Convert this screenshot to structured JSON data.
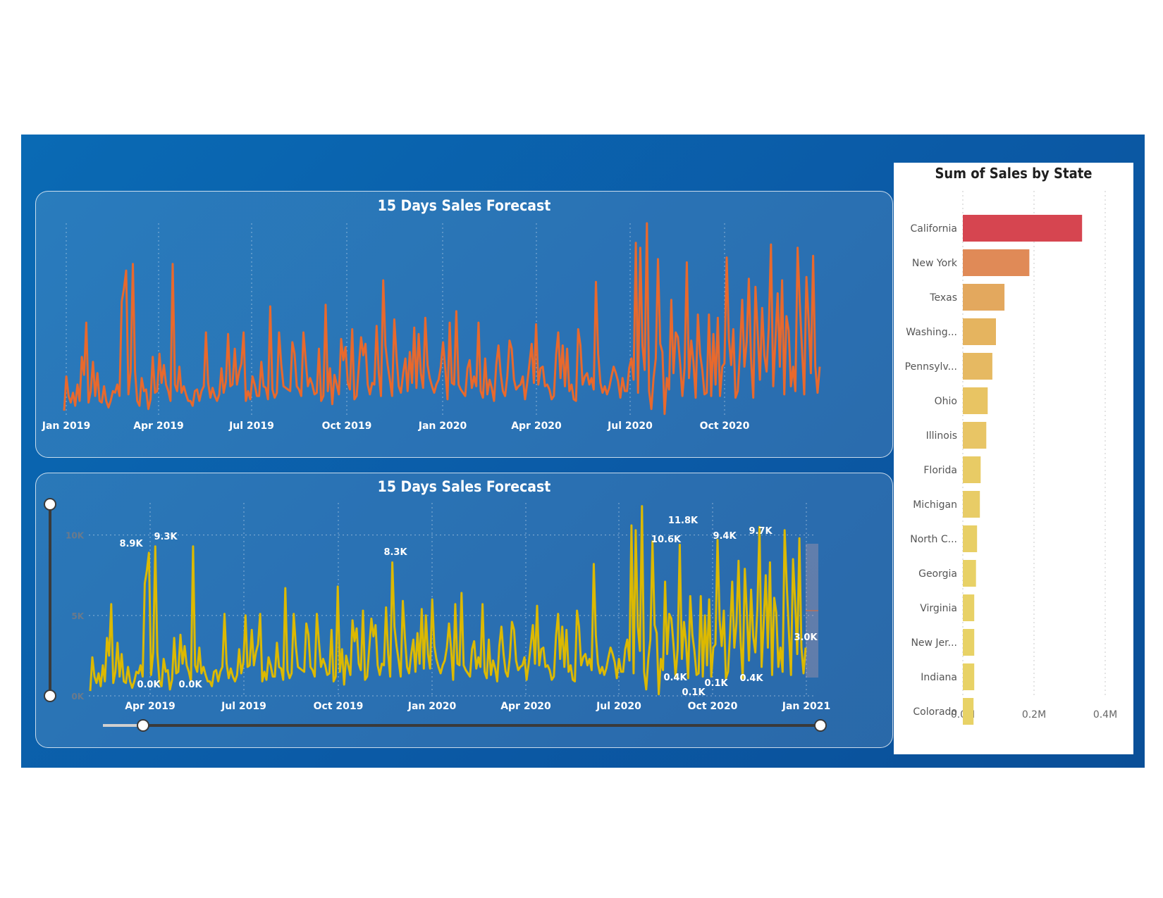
{
  "colors": {
    "line1": "#e8692d",
    "line2": "#dcb900",
    "bars": [
      "#d64550",
      "#e08a57",
      "#e3a85e",
      "#e5b45f",
      "#e6b962",
      "#e8c463",
      "#e8c565",
      "#e8cb65",
      "#e8cc66",
      "#e8cf66",
      "#e8d166",
      "#e8d166",
      "#e8d266",
      "#e8d266",
      "#e8d266"
    ]
  },
  "charts": {
    "top": {
      "title": "15 Days Sales Forecast"
    },
    "bottom": {
      "title": "15 Days Sales Forecast"
    },
    "bars": {
      "title": "Sum of Sales by State"
    }
  },
  "chart_data": [
    {
      "type": "line",
      "title": "15 Days Sales Forecast",
      "x_ticks": [
        "Jan 2019",
        "Apr 2019",
        "Jul 2019",
        "Oct 2019",
        "Jan 2020",
        "Apr 2020",
        "Jul 2020",
        "Oct 2020"
      ],
      "series": [
        {
          "values": [
            300,
            2400,
            1200,
            800,
            1400,
            600,
            1900,
            900,
            3600,
            2500,
            5700,
            800,
            1500,
            3300,
            1200,
            2600,
            900,
            800,
            1800,
            900,
            500,
            900,
            1500,
            1400,
            1900,
            1200,
            7000,
            7800,
            8900,
            1300,
            2700,
            9300,
            2700,
            900,
            600,
            2300,
            1500,
            1600,
            400,
            1000,
            3600,
            1400,
            1500,
            3800,
            2000,
            3100,
            1900,
            1500,
            900,
            9300,
            1900,
            1500,
            3000,
            1400,
            1800,
            1300,
            900,
            900,
            600,
            1500,
            1600,
            900,
            1500,
            1800,
            5100,
            2000,
            1100,
            1700,
            1200,
            900,
            1300,
            2900,
            1400,
            2100,
            5000,
            1800,
            1900,
            4100,
            1900,
            2700,
            3200,
            5100,
            900,
            1500,
            1000,
            2400,
            1900,
            1200,
            1200,
            3300,
            1800,
            1700,
            1000,
            6700,
            1600,
            1100,
            1400,
            5100,
            3100,
            1800,
            1700,
            1600,
            1500,
            4500,
            3800,
            1800,
            1600,
            1200,
            5100,
            3400,
            1800,
            2300,
            1900,
            1300,
            1400,
            4100,
            900,
            1200,
            6800,
            1500,
            2900,
            700,
            2500,
            1900,
            1300,
            4700,
            3400,
            4200,
            2000,
            1600,
            5300,
            1000,
            1200,
            3000,
            4800,
            3700,
            4400,
            1900,
            1300,
            2000,
            1900,
            5500,
            2600,
            1200,
            8300,
            4300,
            3100,
            2200,
            1200,
            5900,
            3600,
            1800,
            1400,
            2600,
            3500,
            1500,
            3900,
            2000,
            5400,
            1700,
            5000,
            2600,
            1700,
            6000,
            3100,
            2300,
            1800,
            1400,
            1900,
            2200,
            3000,
            4500,
            2900,
            1000,
            5700,
            2000,
            1900,
            6400,
            1900,
            1600,
            1400,
            1200,
            2900,
            3400,
            1700,
            2400,
            1800,
            5700,
            1500,
            1100,
            3500,
            1300,
            2200,
            1700,
            900,
            3100,
            4300,
            2600,
            1500,
            1200,
            2400,
            4600,
            4100,
            2200,
            1600,
            1800,
            1900,
            2400,
            1000,
            2000,
            3200,
            4400,
            2000,
            5600,
            1900,
            2900,
            3000,
            1800,
            1900,
            1600,
            1000,
            1200,
            3700,
            5100,
            2300,
            4300,
            1800,
            4100,
            1500,
            1900,
            1000,
            900,
            5300,
            4300,
            1900,
            2400,
            2600,
            1900,
            2300,
            1600,
            8200,
            3800,
            2000,
            1400,
            1800,
            1300,
            1700,
            2400,
            3000,
            2600,
            2100,
            1100,
            2300,
            1500,
            1500,
            2900,
            3500,
            2200,
            10600,
            1400,
            10300,
            4300,
            2800,
            11800,
            1500,
            400,
            2300,
            3500,
            9600,
            4400,
            3900,
            100,
            2300,
            1600,
            7100,
            2600,
            5100,
            4800,
            3200,
            1200,
            2900,
            9400,
            2300,
            4600,
            3300,
            1100,
            6200,
            3800,
            2800,
            1300,
            1400,
            6200,
            1200,
            5000,
            1900,
            6000,
            1200,
            3000,
            3200,
            9700,
            4700,
            3100,
            5300,
            1100,
            1500,
            3900,
            7100,
            3000,
            4500,
            8400,
            3500,
            1100,
            7900,
            5000,
            2200,
            6600,
            3700,
            2700,
            5400,
            10500,
            1800,
            4600,
            7500,
            3000,
            8300,
            1300,
            6100,
            5200,
            1800,
            3000,
            1500,
            10300,
            6900,
            4000,
            1300,
            8500,
            5800,
            2600,
            9800,
            3000,
            1400,
            3000
          ]
        }
      ]
    },
    {
      "type": "line",
      "title": "15 Days Sales Forecast",
      "x_ticks": [
        "Apr 2019",
        "Jul 2019",
        "Oct 2019",
        "Jan 2020",
        "Apr 2020",
        "Jul 2020",
        "Oct 2020",
        "Jan 2021"
      ],
      "y_ticks": [
        "0K",
        "5K",
        "10K"
      ],
      "ylim": [
        0,
        12000
      ],
      "data_labels": [
        {
          "text": "8.9K"
        },
        {
          "text": "9.3K"
        },
        {
          "text": "0.0K"
        },
        {
          "text": "0.0K"
        },
        {
          "text": "8.3K"
        },
        {
          "text": "11.8K"
        },
        {
          "text": "10.6K"
        },
        {
          "text": "9.4K"
        },
        {
          "text": "9.7K"
        },
        {
          "text": "0.4K"
        },
        {
          "text": "0.1K"
        },
        {
          "text": "0.1K"
        },
        {
          "text": "0.4K"
        },
        {
          "text": "3.0K"
        }
      ]
    },
    {
      "type": "bar",
      "orientation": "horizontal",
      "title": "Sum of Sales by State",
      "categories": [
        "California",
        "New York",
        "Texas",
        "Washing...",
        "Pennsylv...",
        "Ohio",
        "Illinois",
        "Florida",
        "Michigan",
        "North C...",
        "Georgia",
        "Virginia",
        "New Jer...",
        "Indiana",
        "Colorado"
      ],
      "values": [
        0.335,
        0.187,
        0.117,
        0.093,
        0.083,
        0.07,
        0.066,
        0.05,
        0.048,
        0.04,
        0.037,
        0.032,
        0.032,
        0.032,
        0.03
      ],
      "x_ticks": [
        "0.0M",
        "0.2M",
        "0.4M"
      ],
      "xlim": [
        0,
        0.4
      ]
    }
  ]
}
